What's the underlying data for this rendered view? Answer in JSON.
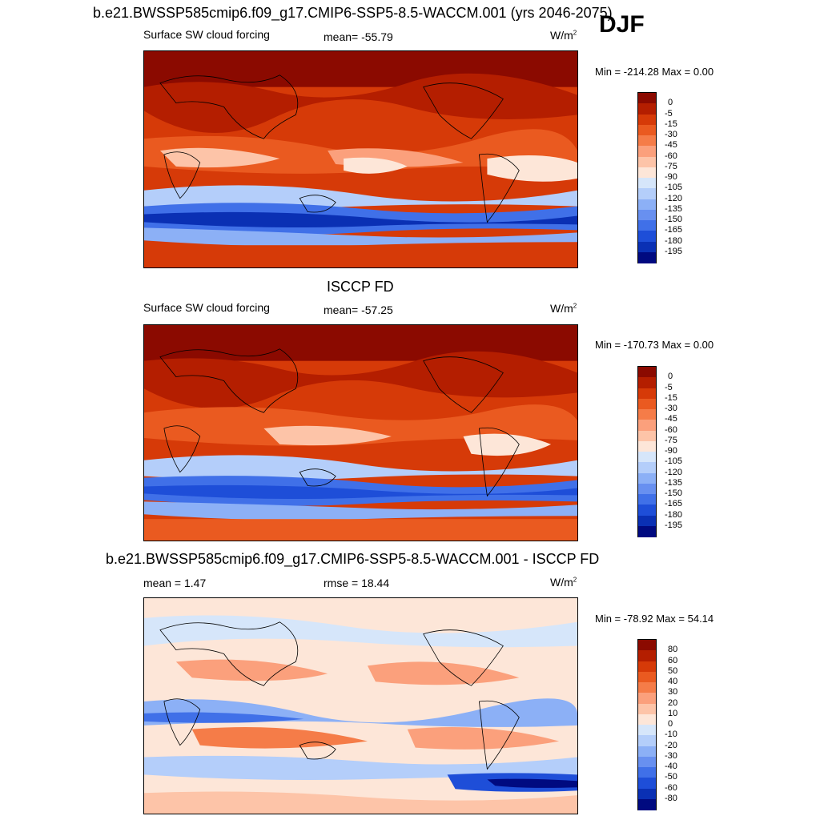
{
  "figure": {
    "season": "DJF",
    "panels": [
      {
        "title": "b.e21.BWSSP585cmip6.f09_g17.CMIP6-SSP5-8.5-WACCM.001 (yrs 2046-2075)",
        "left_label": "Surface SW cloud forcing",
        "center_label": "mean= -55.79",
        "units": "W/m",
        "units_sup": "2",
        "minmax": "Min = -214.28 Max =   0.00",
        "colorbar": {
          "labels": [
            "0",
            "-5",
            "-15",
            "-30",
            "-45",
            "-60",
            "-75",
            "-90",
            "-105",
            "-120",
            "-135",
            "-150",
            "-165",
            "-180",
            "-195"
          ],
          "colors": [
            "#8b0a00",
            "#b41e00",
            "#d63a08",
            "#ea5a20",
            "#f57c48",
            "#fba07c",
            "#fdc4a8",
            "#fde6d8",
            "#d6e6fa",
            "#b4cefa",
            "#8cb0f6",
            "#6890f0",
            "#4070e8",
            "#1e4ed8",
            "#0a30b4",
            "#000a80"
          ]
        }
      },
      {
        "title": "ISCCP FD",
        "left_label": "Surface SW cloud forcing",
        "center_label": "mean= -57.25",
        "units": "W/m",
        "units_sup": "2",
        "minmax": "Min = -170.73 Max =   0.00",
        "colorbar": {
          "labels": [
            "0",
            "-5",
            "-15",
            "-30",
            "-45",
            "-60",
            "-75",
            "-90",
            "-105",
            "-120",
            "-135",
            "-150",
            "-165",
            "-180",
            "-195"
          ],
          "colors": [
            "#8b0a00",
            "#b41e00",
            "#d63a08",
            "#ea5a20",
            "#f57c48",
            "#fba07c",
            "#fdc4a8",
            "#fde6d8",
            "#d6e6fa",
            "#b4cefa",
            "#8cb0f6",
            "#6890f0",
            "#4070e8",
            "#1e4ed8",
            "#0a30b4",
            "#000a80"
          ]
        }
      },
      {
        "title": "b.e21.BWSSP585cmip6.f09_g17.CMIP6-SSP5-8.5-WACCM.001 - ISCCP FD",
        "left_label": "mean =   1.47",
        "center_label": "rmse =  18.44",
        "units": "W/m",
        "units_sup": "2",
        "minmax": "Min = -78.92 Max =  54.14",
        "colorbar": {
          "labels": [
            "80",
            "60",
            "50",
            "40",
            "30",
            "20",
            "10",
            "0",
            "-10",
            "-20",
            "-30",
            "-40",
            "-50",
            "-60",
            "-80"
          ],
          "colors": [
            "#8b0a00",
            "#b41e00",
            "#d63a08",
            "#ea5a20",
            "#f57c48",
            "#fba07c",
            "#fdc4a8",
            "#fde6d8",
            "#d6e6fa",
            "#b4cefa",
            "#8cb0f6",
            "#6890f0",
            "#4070e8",
            "#1e4ed8",
            "#0a30b4",
            "#000a80"
          ]
        }
      }
    ]
  }
}
